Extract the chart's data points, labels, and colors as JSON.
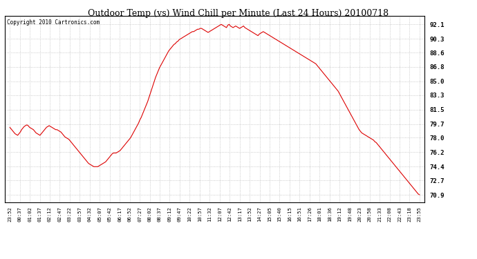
{
  "title": "Outdoor Temp (vs) Wind Chill per Minute (Last 24 Hours) 20100718",
  "copyright": "Copyright 2010 Cartronics.com",
  "line_color": "#dd0000",
  "background_color": "#ffffff",
  "grid_color": "#bbbbbb",
  "yticks": [
    70.9,
    72.7,
    74.4,
    76.2,
    78.0,
    79.7,
    81.5,
    83.3,
    85.0,
    86.8,
    88.6,
    90.3,
    92.1
  ],
  "ylim": [
    70.0,
    93.2
  ],
  "xtick_labels": [
    "23:52",
    "00:37",
    "01:02",
    "01:37",
    "02:12",
    "02:47",
    "03:22",
    "03:57",
    "04:32",
    "05:07",
    "05:42",
    "06:17",
    "06:52",
    "07:27",
    "08:02",
    "08:37",
    "09:12",
    "09:47",
    "10:22",
    "10:57",
    "11:32",
    "12:07",
    "12:42",
    "13:17",
    "13:52",
    "14:27",
    "15:05",
    "15:40",
    "16:15",
    "16:51",
    "17:26",
    "18:01",
    "18:36",
    "19:12",
    "19:48",
    "20:23",
    "20:58",
    "21:33",
    "22:08",
    "22:43",
    "23:18",
    "23:55"
  ],
  "n_xticks": 42,
  "y_values": [
    79.3,
    79.1,
    78.9,
    78.7,
    78.5,
    78.4,
    78.3,
    78.5,
    78.7,
    79.0,
    79.2,
    79.4,
    79.5,
    79.6,
    79.5,
    79.3,
    79.2,
    79.1,
    79.0,
    78.8,
    78.6,
    78.5,
    78.4,
    78.3,
    78.5,
    78.7,
    78.9,
    79.1,
    79.3,
    79.4,
    79.5,
    79.4,
    79.3,
    79.2,
    79.1,
    79.0,
    79.0,
    78.9,
    78.8,
    78.7,
    78.5,
    78.3,
    78.1,
    78.0,
    77.9,
    77.8,
    77.6,
    77.4,
    77.2,
    77.0,
    76.8,
    76.6,
    76.4,
    76.2,
    76.0,
    75.8,
    75.6,
    75.4,
    75.2,
    75.0,
    74.8,
    74.7,
    74.6,
    74.5,
    74.4,
    74.4,
    74.4,
    74.4,
    74.5,
    74.6,
    74.7,
    74.8,
    74.9,
    75.0,
    75.2,
    75.4,
    75.6,
    75.8,
    76.0,
    76.1,
    76.1,
    76.1,
    76.2,
    76.3,
    76.4,
    76.6,
    76.8,
    77.0,
    77.2,
    77.4,
    77.6,
    77.8,
    78.0,
    78.3,
    78.6,
    78.9,
    79.2,
    79.5,
    79.8,
    80.2,
    80.5,
    80.9,
    81.3,
    81.7,
    82.1,
    82.5,
    83.0,
    83.5,
    84.0,
    84.5,
    85.0,
    85.5,
    85.9,
    86.3,
    86.7,
    87.0,
    87.3,
    87.6,
    87.9,
    88.2,
    88.5,
    88.8,
    89.0,
    89.2,
    89.4,
    89.6,
    89.7,
    89.9,
    90.0,
    90.2,
    90.3,
    90.4,
    90.5,
    90.6,
    90.7,
    90.8,
    90.9,
    91.0,
    91.1,
    91.2,
    91.2,
    91.3,
    91.4,
    91.5,
    91.5,
    91.6,
    91.6,
    91.5,
    91.4,
    91.3,
    91.2,
    91.1,
    91.2,
    91.3,
    91.4,
    91.5,
    91.6,
    91.7,
    91.8,
    91.9,
    92.0,
    92.1,
    92.0,
    91.9,
    91.8,
    91.7,
    92.0,
    92.1,
    91.9,
    91.8,
    91.7,
    91.8,
    91.9,
    91.8,
    91.7,
    91.6,
    91.7,
    91.8,
    91.9,
    91.7,
    91.6,
    91.5,
    91.4,
    91.3,
    91.2,
    91.1,
    91.0,
    90.9,
    90.8,
    90.7,
    90.9,
    91.0,
    91.1,
    91.2,
    91.1,
    91.0,
    90.9,
    90.8,
    90.7,
    90.6,
    90.5,
    90.4,
    90.3,
    90.2,
    90.1,
    90.0,
    89.9,
    89.8,
    89.7,
    89.6,
    89.5,
    89.4,
    89.3,
    89.2,
    89.1,
    89.0,
    88.9,
    88.8,
    88.7,
    88.6,
    88.5,
    88.4,
    88.3,
    88.2,
    88.1,
    88.0,
    87.9,
    87.8,
    87.7,
    87.6,
    87.5,
    87.4,
    87.3,
    87.2,
    87.0,
    86.8,
    86.6,
    86.4,
    86.2,
    86.0,
    85.8,
    85.6,
    85.4,
    85.2,
    85.0,
    84.8,
    84.6,
    84.4,
    84.2,
    84.0,
    83.8,
    83.5,
    83.2,
    82.9,
    82.6,
    82.3,
    82.0,
    81.7,
    81.4,
    81.1,
    80.8,
    80.5,
    80.2,
    79.9,
    79.6,
    79.3,
    79.0,
    78.8,
    78.6,
    78.5,
    78.4,
    78.3,
    78.2,
    78.1,
    78.0,
    77.9,
    77.8,
    77.7,
    77.5,
    77.4,
    77.2,
    77.0,
    76.8,
    76.6,
    76.4,
    76.2,
    76.0,
    75.8,
    75.6,
    75.4,
    75.2,
    75.0,
    74.8,
    74.6,
    74.4,
    74.2,
    74.0,
    73.8,
    73.6,
    73.4,
    73.2,
    73.0,
    72.8,
    72.6,
    72.4,
    72.2,
    72.0,
    71.8,
    71.6,
    71.4,
    71.2,
    71.0,
    70.9
  ]
}
